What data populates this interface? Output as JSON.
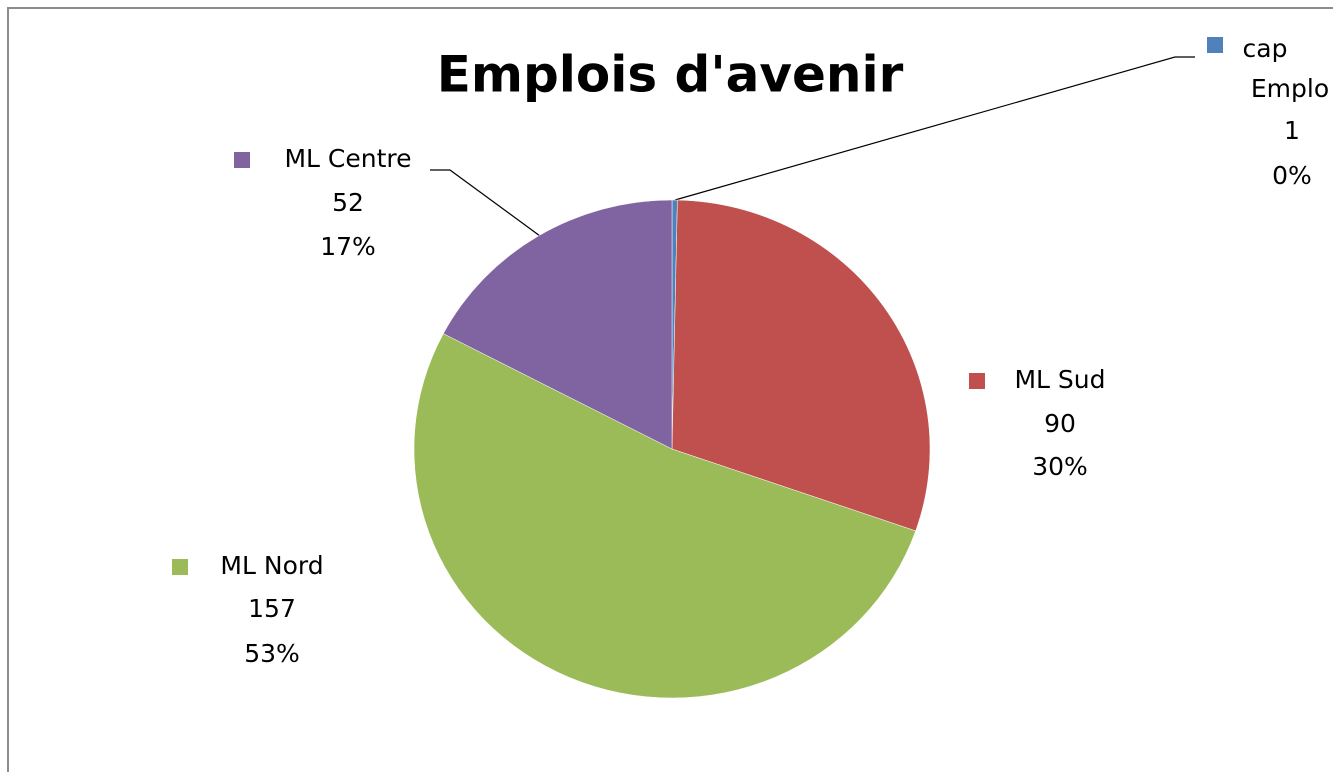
{
  "chart_data": {
    "type": "pie",
    "title": "Emplois d'avenir",
    "categories": [
      "cap Emplo",
      "ML Sud",
      "ML Nord",
      "ML Centre"
    ],
    "values": [
      1,
      90,
      157,
      52
    ],
    "percent_labels": [
      "0%",
      "30%",
      "53%",
      "17%"
    ],
    "colors": [
      "#4f81bd",
      "#c0504d",
      "#9bbb59",
      "#8064a2"
    ]
  }
}
